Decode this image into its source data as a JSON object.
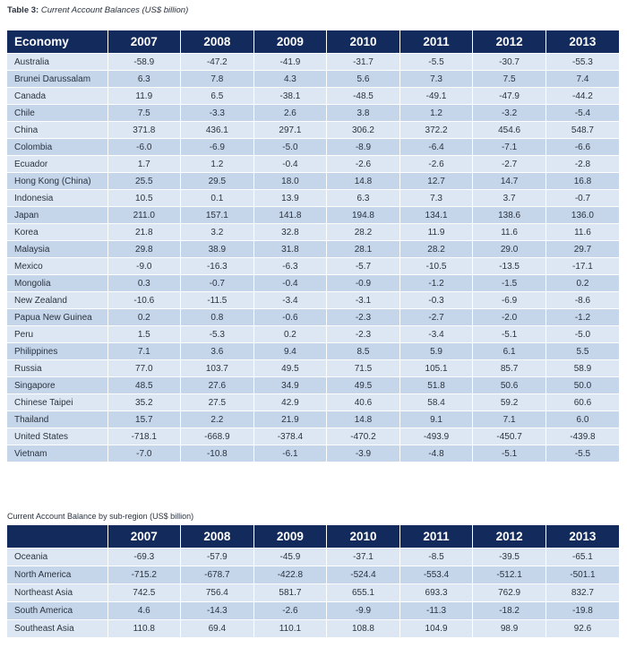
{
  "table1": {
    "caption_prefix": "Table 3:",
    "caption_title": "Current Account Balances (US$ billion)",
    "columns": [
      "Economy",
      "2007",
      "2008",
      "2009",
      "2010",
      "2011",
      "2012",
      "2013"
    ],
    "rows": [
      [
        "Australia",
        "-58.9",
        "-47.2",
        "-41.9",
        "-31.7",
        "-5.5",
        "-30.7",
        "-55.3"
      ],
      [
        "Brunei Darussalam",
        "6.3",
        "7.8",
        "4.3",
        "5.6",
        "7.3",
        "7.5",
        "7.4"
      ],
      [
        "Canada",
        "11.9",
        "6.5",
        "-38.1",
        "-48.5",
        "-49.1",
        "-47.9",
        "-44.2"
      ],
      [
        "Chile",
        "7.5",
        "-3.3",
        "2.6",
        "3.8",
        "1.2",
        "-3.2",
        "-5.4"
      ],
      [
        "China",
        "371.8",
        "436.1",
        "297.1",
        "306.2",
        "372.2",
        "454.6",
        "548.7"
      ],
      [
        "Colombia",
        "-6.0",
        "-6.9",
        "-5.0",
        "-8.9",
        "-6.4",
        "-7.1",
        "-6.6"
      ],
      [
        "Ecuador",
        "1.7",
        "1.2",
        "-0.4",
        "-2.6",
        "-2.6",
        "-2.7",
        "-2.8"
      ],
      [
        "Hong Kong (China)",
        "25.5",
        "29.5",
        "18.0",
        "14.8",
        "12.7",
        "14.7",
        "16.8"
      ],
      [
        "Indonesia",
        "10.5",
        "0.1",
        "13.9",
        "6.3",
        "7.3",
        "3.7",
        "-0.7"
      ],
      [
        "Japan",
        "211.0",
        "157.1",
        "141.8",
        "194.8",
        "134.1",
        "138.6",
        "136.0"
      ],
      [
        "Korea",
        "21.8",
        "3.2",
        "32.8",
        "28.2",
        "11.9",
        "11.6",
        "11.6"
      ],
      [
        "Malaysia",
        "29.8",
        "38.9",
        "31.8",
        "28.1",
        "28.2",
        "29.0",
        "29.7"
      ],
      [
        "Mexico",
        "-9.0",
        "-16.3",
        "-6.3",
        "-5.7",
        "-10.5",
        "-13.5",
        "-17.1"
      ],
      [
        "Mongolia",
        "0.3",
        "-0.7",
        "-0.4",
        "-0.9",
        "-1.2",
        "-1.5",
        "0.2"
      ],
      [
        "New Zealand",
        "-10.6",
        "-11.5",
        "-3.4",
        "-3.1",
        "-0.3",
        "-6.9",
        "-8.6"
      ],
      [
        "Papua New Guinea",
        "0.2",
        "0.8",
        "-0.6",
        "-2.3",
        "-2.7",
        "-2.0",
        "-1.2"
      ],
      [
        "Peru",
        "1.5",
        "-5.3",
        "0.2",
        "-2.3",
        "-3.4",
        "-5.1",
        "-5.0"
      ],
      [
        "Philippines",
        "7.1",
        "3.6",
        "9.4",
        "8.5",
        "5.9",
        "6.1",
        "5.5"
      ],
      [
        "Russia",
        "77.0",
        "103.7",
        "49.5",
        "71.5",
        "105.1",
        "85.7",
        "58.9"
      ],
      [
        "Singapore",
        "48.5",
        "27.6",
        "34.9",
        "49.5",
        "51.8",
        "50.6",
        "50.0"
      ],
      [
        "Chinese Taipei",
        "35.2",
        "27.5",
        "42.9",
        "40.6",
        "58.4",
        "59.2",
        "60.6"
      ],
      [
        "Thailand",
        "15.7",
        "2.2",
        "21.9",
        "14.8",
        "9.1",
        "7.1",
        "6.0"
      ],
      [
        "United States",
        "-718.1",
        "-668.9",
        "-378.4",
        "-470.2",
        "-493.9",
        "-450.7",
        "-439.8"
      ],
      [
        "Vietnam",
        "-7.0",
        "-10.8",
        "-6.1",
        "-3.9",
        "-4.8",
        "-5.1",
        "-5.5"
      ]
    ]
  },
  "table2": {
    "caption": "Current Account Balance by sub-region (US$ billion)",
    "columns": [
      "",
      "2007",
      "2008",
      "2009",
      "2010",
      "2011",
      "2012",
      "2013"
    ],
    "rows": [
      [
        "Oceania",
        "-69.3",
        "-57.9",
        "-45.9",
        "-37.1",
        "-8.5",
        "-39.5",
        "-65.1"
      ],
      [
        "North America",
        "-715.2",
        "-678.7",
        "-422.8",
        "-524.4",
        "-553.4",
        "-512.1",
        "-501.1"
      ],
      [
        "Northeast Asia",
        "742.5",
        "756.4",
        "581.7",
        "655.1",
        "693.3",
        "762.9",
        "832.7"
      ],
      [
        "South America",
        "4.6",
        "-14.3",
        "-2.6",
        "-9.9",
        "-11.3",
        "-18.2",
        "-19.8"
      ],
      [
        "Southeast Asia",
        "110.8",
        "69.4",
        "110.1",
        "108.8",
        "104.9",
        "98.9",
        "92.6"
      ]
    ]
  }
}
